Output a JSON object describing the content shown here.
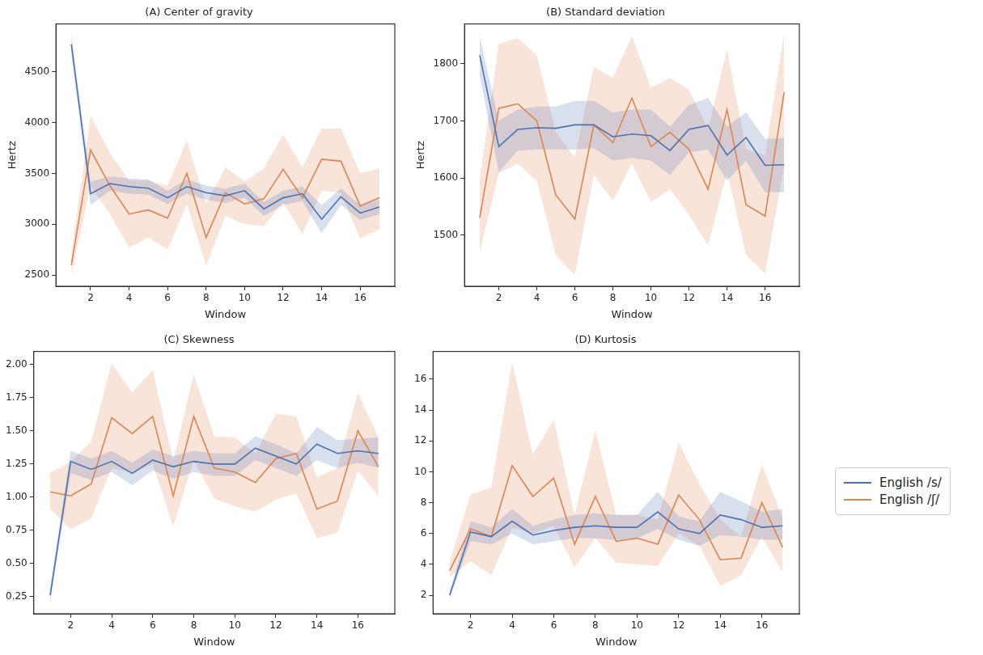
{
  "chart_data": [
    {
      "type": "line",
      "title": "(A) Center of gravity",
      "x_label": "Window",
      "y_label": "Hertz",
      "x": [
        1,
        2,
        3,
        4,
        5,
        6,
        7,
        8,
        9,
        10,
        11,
        12,
        13,
        14,
        15,
        16,
        17
      ],
      "xlim": [
        0.2,
        17.8
      ],
      "xticks": [
        2,
        4,
        6,
        8,
        10,
        12,
        14,
        16
      ],
      "ylim": [
        2390,
        4970
      ],
      "yticks": [
        2500,
        3000,
        3500,
        4000,
        4500
      ],
      "grid": false,
      "series": [
        {
          "name": "English /s/",
          "color": "#4c72b0",
          "values": [
            4770,
            3300,
            3400,
            3370,
            3355,
            3260,
            3370,
            3310,
            3280,
            3330,
            3150,
            3260,
            3300,
            3050,
            3270,
            3110,
            3170
          ],
          "lower": [
            4670,
            3190,
            3330,
            3300,
            3290,
            3200,
            3300,
            3240,
            3210,
            3260,
            3080,
            3190,
            3230,
            2910,
            3190,
            3040,
            3100
          ],
          "upper": [
            4870,
            3420,
            3470,
            3450,
            3440,
            3330,
            3440,
            3380,
            3350,
            3400,
            3220,
            3330,
            3370,
            3190,
            3350,
            3190,
            3240
          ]
        },
        {
          "name": "English /ʃ/",
          "color": "#dd8452",
          "values": [
            2600,
            3730,
            3380,
            3100,
            3140,
            3060,
            3500,
            2870,
            3310,
            3200,
            3250,
            3540,
            3260,
            3640,
            3620,
            3180,
            3260
          ],
          "lower": [
            2500,
            3380,
            3100,
            2770,
            2870,
            2750,
            3200,
            2590,
            3080,
            3000,
            2980,
            3220,
            2900,
            3330,
            3310,
            2860,
            2950
          ],
          "upper": [
            2700,
            4070,
            3700,
            3430,
            3430,
            3380,
            3820,
            3200,
            3560,
            3420,
            3550,
            3880,
            3560,
            3940,
            3940,
            3500,
            3550
          ]
        }
      ]
    },
    {
      "type": "line",
      "title": "(B) Standard deviation",
      "x_label": "Window",
      "y_label": "Hertz",
      "x": [
        1,
        2,
        3,
        4,
        5,
        6,
        7,
        8,
        9,
        10,
        11,
        12,
        13,
        14,
        15,
        16,
        17
      ],
      "xlim": [
        0.2,
        17.8
      ],
      "xticks": [
        2,
        4,
        6,
        8,
        10,
        12,
        14,
        16
      ],
      "ylim": [
        1410,
        1870
      ],
      "yticks": [
        1500,
        1600,
        1700,
        1800
      ],
      "grid": false,
      "series": [
        {
          "name": "English /s/",
          "color": "#4c72b0",
          "values": [
            1815,
            1655,
            1685,
            1688,
            1687,
            1693,
            1693,
            1672,
            1677,
            1674,
            1648,
            1685,
            1692,
            1640,
            1671,
            1622,
            1623
          ],
          "lower": [
            1780,
            1610,
            1648,
            1650,
            1650,
            1650,
            1652,
            1630,
            1635,
            1630,
            1605,
            1645,
            1650,
            1595,
            1630,
            1575,
            1575
          ],
          "upper": [
            1848,
            1700,
            1720,
            1725,
            1725,
            1735,
            1735,
            1715,
            1720,
            1720,
            1690,
            1728,
            1740,
            1690,
            1715,
            1668,
            1670
          ]
        },
        {
          "name": "English /ʃ/",
          "color": "#dd8452",
          "values": [
            1530,
            1722,
            1730,
            1700,
            1570,
            1528,
            1693,
            1662,
            1740,
            1655,
            1680,
            1650,
            1580,
            1720,
            1553,
            1533,
            1750
          ],
          "lower": [
            1470,
            1608,
            1625,
            1595,
            1465,
            1430,
            1605,
            1560,
            1625,
            1558,
            1580,
            1535,
            1482,
            1610,
            1465,
            1432,
            1620
          ],
          "upper": [
            1598,
            1835,
            1845,
            1815,
            1680,
            1635,
            1795,
            1775,
            1848,
            1758,
            1775,
            1755,
            1685,
            1825,
            1650,
            1640,
            1852
          ]
        }
      ]
    },
    {
      "type": "line",
      "title": "(C) Skewness",
      "x_label": "Window",
      "x": [
        1,
        2,
        3,
        4,
        5,
        6,
        7,
        8,
        9,
        10,
        11,
        12,
        13,
        14,
        15,
        16,
        17
      ],
      "xlim": [
        0.2,
        17.8
      ],
      "xticks": [
        2,
        4,
        6,
        8,
        10,
        12,
        14,
        16
      ],
      "ylim": [
        0.12,
        2.1
      ],
      "yticks": [
        {
          "value": 0.25,
          "label": "0.25"
        },
        {
          "value": 0.5,
          "label": "0.50"
        },
        {
          "value": 0.75,
          "label": "0.75"
        },
        {
          "value": 1,
          "label": "1.00"
        },
        {
          "value": 1.25,
          "label": "1.25"
        },
        {
          "value": 1.5,
          "label": "1.50"
        },
        {
          "value": 1.75,
          "label": "1.75"
        },
        {
          "value": 2,
          "label": "2.00"
        }
      ],
      "grid": false,
      "series": [
        {
          "name": "English /s/",
          "color": "#4c72b0",
          "values": [
            0.26,
            1.27,
            1.21,
            1.27,
            1.18,
            1.28,
            1.23,
            1.27,
            1.25,
            1.25,
            1.37,
            1.31,
            1.25,
            1.4,
            1.33,
            1.35,
            1.33
          ],
          "lower": [
            0.2,
            1.18,
            1.13,
            1.19,
            1.09,
            1.2,
            1.14,
            1.19,
            1.16,
            1.16,
            1.28,
            1.22,
            1.16,
            1.28,
            1.22,
            1.26,
            1.22
          ],
          "upper": [
            0.32,
            1.35,
            1.29,
            1.35,
            1.26,
            1.36,
            1.31,
            1.35,
            1.33,
            1.33,
            1.46,
            1.4,
            1.33,
            1.53,
            1.43,
            1.44,
            1.45
          ]
        },
        {
          "name": "English /ʃ/",
          "color": "#dd8452",
          "values": [
            1.04,
            1.01,
            1.1,
            1.6,
            1.48,
            1.61,
            1.01,
            1.61,
            1.22,
            1.19,
            1.11,
            1.29,
            1.33,
            0.91,
            0.97,
            1.5,
            1.23
          ],
          "lower": [
            0.91,
            0.76,
            0.84,
            1.22,
            1.18,
            1.25,
            0.78,
            1.28,
            0.99,
            0.93,
            0.89,
            0.98,
            1.03,
            0.69,
            0.73,
            1.2,
            1.01
          ],
          "upper": [
            1.18,
            1.27,
            1.42,
            2.01,
            1.79,
            1.96,
            1.27,
            1.93,
            1.46,
            1.45,
            1.33,
            1.63,
            1.61,
            1.15,
            1.22,
            1.79,
            1.45
          ]
        }
      ]
    },
    {
      "type": "line",
      "title": "(D) Kurtosis",
      "x_label": "Window",
      "legend": "right",
      "x": [
        1,
        2,
        3,
        4,
        5,
        6,
        7,
        8,
        9,
        10,
        11,
        12,
        13,
        14,
        15,
        16,
        17
      ],
      "xlim": [
        0.2,
        17.8
      ],
      "xticks": [
        2,
        4,
        6,
        8,
        10,
        12,
        14,
        16
      ],
      "ylim": [
        0.8,
        17.8
      ],
      "yticks": [
        2,
        4,
        6,
        8,
        10,
        12,
        14,
        16
      ],
      "grid": false,
      "series": [
        {
          "name": "English /s/",
          "color": "#4c72b0",
          "values": [
            2.0,
            6.1,
            5.8,
            6.8,
            5.9,
            6.2,
            6.4,
            6.5,
            6.4,
            6.4,
            7.4,
            6.3,
            6.0,
            7.2,
            6.9,
            6.4,
            6.5
          ],
          "lower": [
            1.8,
            5.5,
            5.3,
            6.0,
            5.3,
            5.5,
            5.7,
            5.7,
            5.6,
            5.7,
            6.3,
            5.6,
            5.2,
            5.9,
            5.8,
            5.6,
            5.6
          ],
          "upper": [
            2.3,
            6.8,
            6.4,
            7.6,
            6.5,
            6.9,
            7.2,
            7.3,
            7.2,
            7.2,
            8.7,
            7.1,
            6.8,
            8.7,
            8.1,
            7.4,
            7.6
          ]
        },
        {
          "name": "English /ʃ/",
          "color": "#dd8452",
          "values": [
            3.6,
            6.3,
            5.8,
            10.4,
            8.4,
            9.6,
            5.3,
            8.4,
            5.5,
            5.7,
            5.3,
            8.5,
            6.9,
            4.3,
            4.4,
            8.0,
            5.1
          ],
          "lower": [
            3.2,
            4.2,
            3.3,
            6.4,
            6.0,
            6.5,
            3.8,
            5.7,
            4.1,
            4.0,
            3.9,
            6.0,
            5.2,
            2.6,
            3.3,
            5.8,
            3.5
          ],
          "upper": [
            4.2,
            8.5,
            9.0,
            17.1,
            11.1,
            13.4,
            7.2,
            12.7,
            7.2,
            7.2,
            6.9,
            11.9,
            9.2,
            6.9,
            5.8,
            10.5,
            7.0
          ]
        }
      ]
    }
  ]
}
